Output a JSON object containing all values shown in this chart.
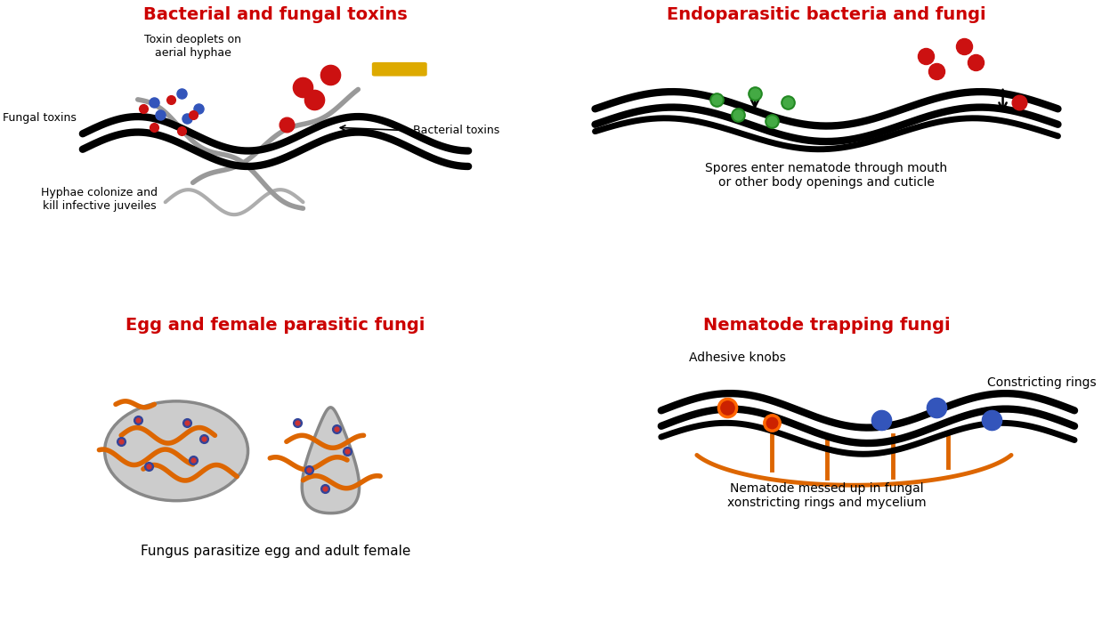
{
  "title_color": "#cc0000",
  "bg_color": "#ffffff",
  "panel_titles": [
    "Bacterial and fungal toxins",
    "Endoparasitic bacteria and fungi",
    "Egg and female parasitic fungi",
    "Nematode trapping fungi"
  ],
  "red_color": "#cc1111",
  "blue_color": "#3355bb",
  "green_color": "#44aa44",
  "orange_color": "#dd6600",
  "yellow_color": "#ddaa00",
  "hyphae_color": "#999999"
}
